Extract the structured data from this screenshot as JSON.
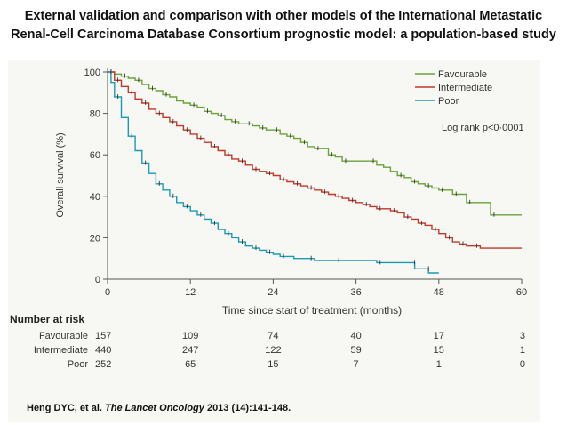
{
  "title": {
    "line1": "External validation and comparison with other models of the International  Metastatic",
    "line2": "Renal-Cell Carcinoma Database Consortium prognostic model: a population-based  study"
  },
  "citation": {
    "authors": "Heng DYC, et al. ",
    "journal": "The Lancet Oncology",
    "details": " 2013 (14):141-148."
  },
  "chart_data": {
    "type": "line",
    "xlabel": "Time since start of treatment (months)",
    "ylabel": "Overall survival (%)",
    "xlim": [
      0,
      60
    ],
    "ylim": [
      0,
      100
    ],
    "xticks": [
      0,
      12,
      24,
      36,
      48,
      60
    ],
    "yticks": [
      0,
      20,
      40,
      60,
      80,
      100
    ],
    "annotation": "Log rank p<0·0001",
    "legend_position": "top-right",
    "series": [
      {
        "name": "Favourable",
        "color": "#6aa33a",
        "points": [
          [
            0,
            100
          ],
          [
            1,
            99
          ],
          [
            2,
            98
          ],
          [
            3,
            97
          ],
          [
            4,
            96
          ],
          [
            5,
            94
          ],
          [
            6,
            92
          ],
          [
            7,
            91
          ],
          [
            8,
            89
          ],
          [
            9,
            88
          ],
          [
            10,
            86
          ],
          [
            11,
            85
          ],
          [
            12,
            84
          ],
          [
            13,
            83
          ],
          [
            14,
            81
          ],
          [
            15,
            80
          ],
          [
            16,
            79
          ],
          [
            17,
            77
          ],
          [
            18,
            76
          ],
          [
            19,
            75
          ],
          [
            20,
            75
          ],
          [
            21,
            74
          ],
          [
            22,
            73
          ],
          [
            23,
            72
          ],
          [
            24,
            72
          ],
          [
            25,
            70
          ],
          [
            26,
            69
          ],
          [
            27,
            68
          ],
          [
            28,
            66
          ],
          [
            29,
            64
          ],
          [
            30,
            63
          ],
          [
            31,
            63
          ],
          [
            32,
            60
          ],
          [
            33,
            59
          ],
          [
            34,
            57
          ],
          [
            36,
            57
          ],
          [
            38,
            57
          ],
          [
            39,
            55
          ],
          [
            40,
            54
          ],
          [
            41,
            52
          ],
          [
            42,
            50
          ],
          [
            43,
            49
          ],
          [
            44,
            47
          ],
          [
            45,
            46
          ],
          [
            46,
            45
          ],
          [
            47,
            44
          ],
          [
            48,
            43
          ],
          [
            49,
            43
          ],
          [
            50,
            41
          ],
          [
            51,
            41
          ],
          [
            52,
            37
          ],
          [
            55,
            37
          ],
          [
            55.5,
            31
          ],
          [
            60,
            31
          ]
        ]
      },
      {
        "name": "Intermediate",
        "color": "#c0392b",
        "points": [
          [
            0,
            100
          ],
          [
            1,
            96
          ],
          [
            2,
            93
          ],
          [
            3,
            90
          ],
          [
            4,
            87
          ],
          [
            5,
            85
          ],
          [
            6,
            82
          ],
          [
            7,
            80
          ],
          [
            8,
            78
          ],
          [
            9,
            76
          ],
          [
            10,
            74
          ],
          [
            11,
            72
          ],
          [
            12,
            70
          ],
          [
            13,
            68
          ],
          [
            14,
            66
          ],
          [
            15,
            64
          ],
          [
            16,
            62
          ],
          [
            17,
            60
          ],
          [
            18,
            58
          ],
          [
            19,
            57
          ],
          [
            20,
            55
          ],
          [
            21,
            53
          ],
          [
            22,
            52
          ],
          [
            23,
            51
          ],
          [
            24,
            50
          ],
          [
            25,
            48
          ],
          [
            26,
            47
          ],
          [
            27,
            46
          ],
          [
            28,
            45
          ],
          [
            29,
            44
          ],
          [
            30,
            43
          ],
          [
            31,
            42
          ],
          [
            32,
            41
          ],
          [
            33,
            40
          ],
          [
            34,
            39
          ],
          [
            35,
            38
          ],
          [
            36,
            37
          ],
          [
            37,
            36
          ],
          [
            38,
            35
          ],
          [
            39,
            34
          ],
          [
            40,
            34
          ],
          [
            41,
            33
          ],
          [
            42,
            32
          ],
          [
            43,
            30
          ],
          [
            44,
            29
          ],
          [
            45,
            27
          ],
          [
            46,
            26
          ],
          [
            47,
            24
          ],
          [
            48,
            22
          ],
          [
            49,
            20
          ],
          [
            50,
            18
          ],
          [
            51,
            17
          ],
          [
            52,
            16
          ],
          [
            53,
            16
          ],
          [
            54,
            15
          ],
          [
            60,
            15
          ]
        ]
      },
      {
        "name": "Poor",
        "color": "#1a9bb5",
        "points": [
          [
            0,
            100
          ],
          [
            0.5,
            95
          ],
          [
            1,
            88
          ],
          [
            2,
            78
          ],
          [
            3,
            69
          ],
          [
            4,
            62
          ],
          [
            5,
            56
          ],
          [
            6,
            51
          ],
          [
            7,
            46
          ],
          [
            8,
            43
          ],
          [
            9,
            40
          ],
          [
            10,
            37
          ],
          [
            11,
            35
          ],
          [
            12,
            33
          ],
          [
            13,
            31
          ],
          [
            14,
            29
          ],
          [
            15,
            27
          ],
          [
            16,
            24
          ],
          [
            17,
            22
          ],
          [
            18,
            20
          ],
          [
            19,
            18
          ],
          [
            20,
            16
          ],
          [
            21,
            15
          ],
          [
            22,
            14
          ],
          [
            23,
            13
          ],
          [
            24,
            12
          ],
          [
            25,
            11
          ],
          [
            27,
            10
          ],
          [
            29,
            10
          ],
          [
            30,
            9
          ],
          [
            33,
            9
          ],
          [
            36,
            9
          ],
          [
            39,
            8
          ],
          [
            40,
            8
          ],
          [
            44,
            8
          ],
          [
            44.5,
            5
          ],
          [
            46,
            5
          ],
          [
            46.5,
            3
          ],
          [
            48,
            3
          ]
        ]
      }
    ]
  },
  "risk_table": {
    "header": "Number at risk",
    "rows": [
      {
        "label": "Favourable",
        "values": [
          "157",
          "109",
          "74",
          "40",
          "17",
          "3"
        ]
      },
      {
        "label": "Intermediate",
        "values": [
          "440",
          "247",
          "122",
          "59",
          "15",
          "1"
        ]
      },
      {
        "label": "Poor",
        "values": [
          "252",
          "65",
          "15",
          "7",
          "1",
          "0"
        ]
      }
    ]
  }
}
